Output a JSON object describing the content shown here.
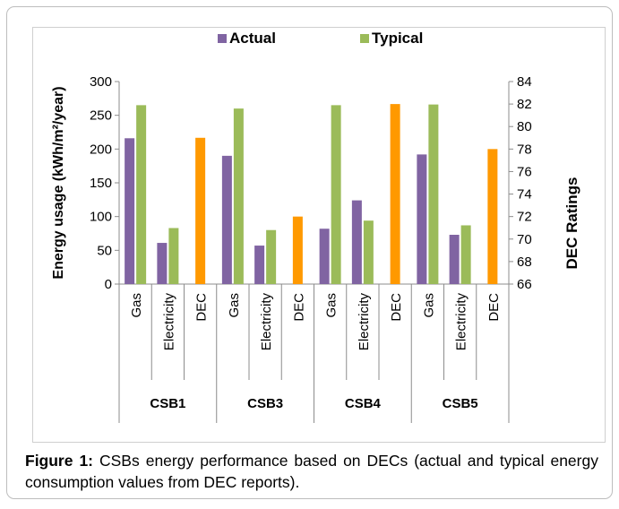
{
  "chart_data": {
    "type": "bar",
    "groups": [
      "CSB1",
      "CSB3",
      "CSB4",
      "CSB5"
    ],
    "categories": [
      "Gas",
      "Electricity",
      "DEC"
    ],
    "series": [
      {
        "name": "Actual",
        "color": "#8064a2",
        "values": [
          [
            216,
            61
          ],
          [
            190,
            57
          ],
          [
            82,
            124
          ],
          [
            192,
            73
          ]
        ]
      },
      {
        "name": "Typical",
        "color": "#9bbb59",
        "values": [
          [
            265,
            83
          ],
          [
            260,
            80
          ],
          [
            265,
            94
          ],
          [
            266,
            87
          ]
        ]
      }
    ],
    "dec": {
      "color": "#ff9900",
      "values": [
        79,
        72,
        82,
        78
      ]
    },
    "ylabel": "Energy usage (kWh/m²/year)",
    "y2label": "DEC Ratings",
    "ylim": [
      0,
      300
    ],
    "y2lim": [
      66,
      84
    ],
    "yticks": [
      "0",
      "50",
      "100",
      "150",
      "200",
      "250",
      "300"
    ],
    "y2ticks": [
      "66",
      "68",
      "70",
      "72",
      "74",
      "76",
      "78",
      "80",
      "82",
      "84"
    ],
    "legend_position": "top",
    "grid": false
  },
  "caption": {
    "label": "Figure 1:",
    "text": " CSBs energy performance based on DECs (actual and typical energy consumption values from DEC reports)."
  }
}
